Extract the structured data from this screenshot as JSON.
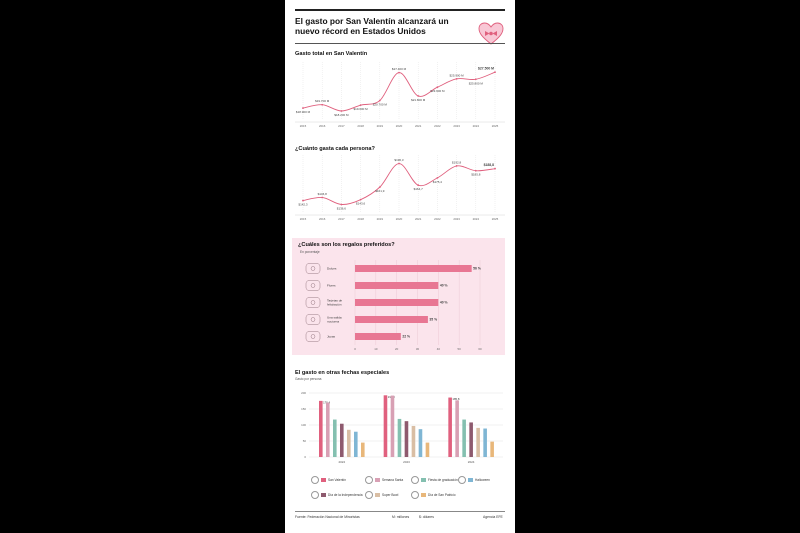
{
  "title": "El gasto por San Valentín alcanzará un nuevo récord en Estados Unidos",
  "footer": {
    "source": "Fuente: Federación Nacional de Minoristas",
    "unit_millions": "M: millones",
    "unit_dollars": "$: dólares",
    "agency": "Agencia EFE"
  },
  "colors": {
    "accent": "#e0607e",
    "pink_panel": "#fbe4ec",
    "bar_pink": "#e87693"
  },
  "chart_data": [
    {
      "type": "line",
      "title": "Gasto total en San Valentín",
      "x": [
        "2015",
        "2016",
        "2017",
        "2018",
        "2019",
        "2020",
        "2021",
        "2022",
        "2023",
        "2024",
        "2025"
      ],
      "values": [
        18900,
        19700,
        18200,
        19600,
        20700,
        27400,
        21800,
        23900,
        25900,
        25800,
        27500
      ],
      "labels": [
        "$18.900 M",
        "$19.700 M",
        "$18.200 M",
        "$19.600 M",
        "$20.700 M",
        "$27.400 M",
        "$21.800 M",
        "$23.900 M",
        "$25.900 M",
        "$25.800 M",
        "$27.500 M"
      ]
    },
    {
      "type": "line",
      "title": "¿Cuánto gasta cada persona?",
      "x": [
        "2015",
        "2016",
        "2017",
        "2018",
        "2019",
        "2020",
        "2021",
        "2022",
        "2023",
        "2024",
        "2025"
      ],
      "values": [
        142.3,
        146.8,
        136.6,
        143.6,
        161.9,
        196.3,
        164.7,
        175.4,
        192.8,
        185.8,
        188.8
      ],
      "labels": [
        "$142,3",
        "$146,8",
        "$136,6",
        "$143,6",
        "$161,9",
        "$196,3",
        "$164,7",
        "$175,4",
        "$192,8",
        "$185,8",
        "$188,8"
      ]
    },
    {
      "type": "bar",
      "orientation": "horizontal",
      "title": "¿Cuáles son los regalos preferidos?",
      "subtitle": "En porcentaje",
      "categories": [
        "Dulces",
        "Flores",
        "Tarjetas de felicitación",
        "Una salida nocturna",
        "Joyas"
      ],
      "values": [
        56,
        40,
        40,
        35,
        22
      ],
      "labels": [
        "56 %",
        "40 %",
        "40 %",
        "35 %",
        "22 %"
      ],
      "icons": [
        "candy-icon",
        "flowers-icon",
        "greeting-card-icon",
        "night-out-icon",
        "jewelry-icon"
      ],
      "x_ticks": [
        "0",
        "10",
        "20",
        "30",
        "40",
        "50",
        "60"
      ],
      "xlim": [
        0,
        60
      ]
    },
    {
      "type": "bar",
      "title": "El gasto en otras fechas especiales",
      "subtitle": "Gasto por persona",
      "categories": [
        "2022",
        "2023",
        "2024"
      ],
      "y_ticks": [
        "0",
        "50",
        "100",
        "150",
        "200"
      ],
      "ylim": [
        0,
        200
      ],
      "series": [
        {
          "name": "San Valentín",
          "color": "#e0607e",
          "values": [
            175.4,
            192.8,
            185.8
          ],
          "labels": [
            "175,4",
            "192,8",
            "185,8"
          ]
        },
        {
          "name": "Semana Santa",
          "color": "#d8a0b4",
          "values": [
            169.8,
            192.0,
            177.0
          ]
        },
        {
          "name": "Fiesta de graduación",
          "color": "#84c0b0",
          "values": [
            117,
            119,
            117
          ]
        },
        {
          "name": "Día de la Independencia",
          "color": "#8e5a6e",
          "values": [
            104,
            112,
            108
          ]
        },
        {
          "name": "Super Bowl",
          "color": "#d9bea4",
          "values": [
            85,
            97,
            91
          ]
        },
        {
          "name": "Halloween",
          "color": "#7fb6d4",
          "values": [
            79,
            87,
            89
          ]
        },
        {
          "name": "Día de San Patricio",
          "color": "#e8b77a",
          "values": [
            45,
            45,
            48
          ]
        }
      ]
    }
  ]
}
